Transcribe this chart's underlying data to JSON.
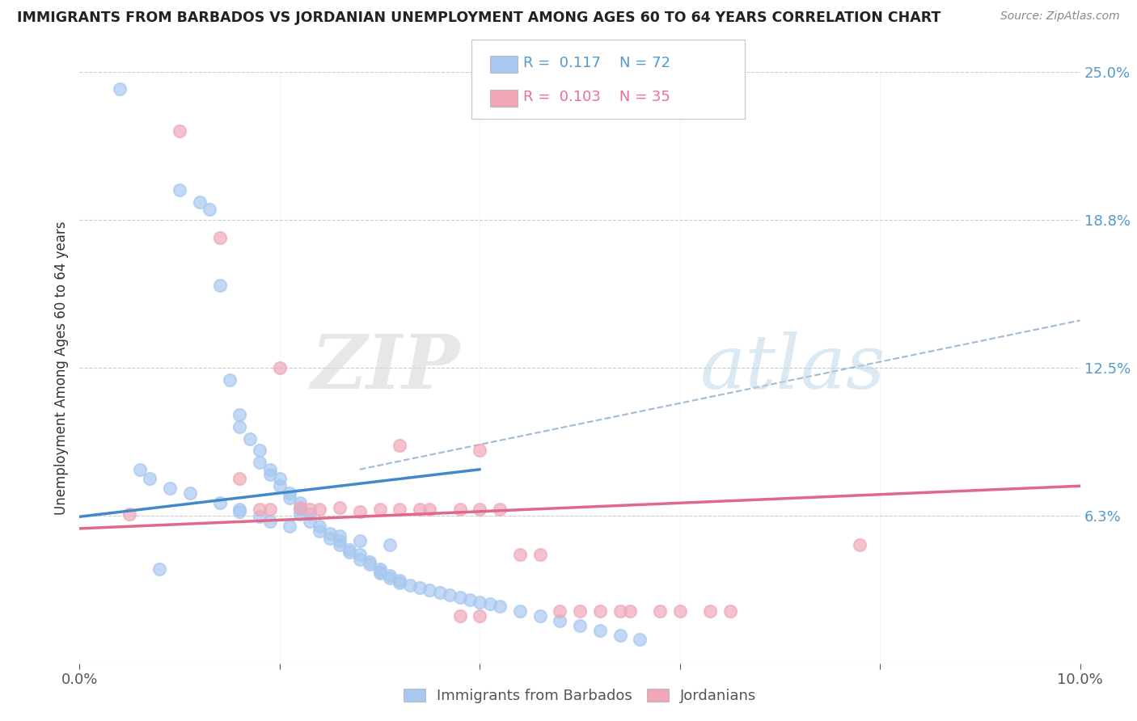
{
  "title": "IMMIGRANTS FROM BARBADOS VS JORDANIAN UNEMPLOYMENT AMONG AGES 60 TO 64 YEARS CORRELATION CHART",
  "source": "Source: ZipAtlas.com",
  "ylabel": "Unemployment Among Ages 60 to 64 years",
  "xlim": [
    0.0,
    0.1
  ],
  "ylim": [
    0.0,
    0.25
  ],
  "yticks_right": [
    0.0625,
    0.125,
    0.1875,
    0.25
  ],
  "yticklabels_right": [
    "6.3%",
    "12.5%",
    "18.8%",
    "25.0%"
  ],
  "watermark_ZIP": "ZIP",
  "watermark_atlas": "atlas",
  "legend_R1": "0.117",
  "legend_N1": "72",
  "legend_R2": "0.103",
  "legend_N2": "35",
  "blue_color": "#a8c8f0",
  "pink_color": "#f0a8b8",
  "trend_blue_color": "#4488cc",
  "trend_pink_color": "#e06888",
  "dash_color": "#88aacc",
  "blue_trend_x": [
    0.0,
    0.04
  ],
  "blue_trend_y": [
    0.062,
    0.082
  ],
  "pink_trend_x": [
    0.0,
    0.1
  ],
  "pink_trend_y": [
    0.057,
    0.075
  ],
  "dash_trend_x": [
    0.028,
    0.1
  ],
  "dash_trend_y": [
    0.082,
    0.145
  ],
  "blue_scatter_x": [
    0.004,
    0.008,
    0.01,
    0.012,
    0.013,
    0.014,
    0.015,
    0.016,
    0.016,
    0.017,
    0.018,
    0.018,
    0.019,
    0.019,
    0.02,
    0.02,
    0.021,
    0.021,
    0.022,
    0.022,
    0.022,
    0.023,
    0.023,
    0.024,
    0.025,
    0.025,
    0.026,
    0.026,
    0.027,
    0.027,
    0.028,
    0.028,
    0.029,
    0.029,
    0.03,
    0.03,
    0.03,
    0.031,
    0.031,
    0.032,
    0.032,
    0.033,
    0.034,
    0.035,
    0.036,
    0.037,
    0.038,
    0.039,
    0.04,
    0.041,
    0.042,
    0.044,
    0.046,
    0.048,
    0.05,
    0.052,
    0.054,
    0.056,
    0.006,
    0.007,
    0.009,
    0.011,
    0.014,
    0.016,
    0.016,
    0.018,
    0.019,
    0.021,
    0.024,
    0.026,
    0.028,
    0.031
  ],
  "blue_scatter_y": [
    0.243,
    0.04,
    0.2,
    0.195,
    0.192,
    0.16,
    0.12,
    0.105,
    0.1,
    0.095,
    0.09,
    0.085,
    0.082,
    0.08,
    0.078,
    0.075,
    0.072,
    0.07,
    0.068,
    0.065,
    0.063,
    0.063,
    0.06,
    0.058,
    0.055,
    0.053,
    0.052,
    0.05,
    0.048,
    0.047,
    0.046,
    0.044,
    0.043,
    0.042,
    0.04,
    0.039,
    0.038,
    0.037,
    0.036,
    0.035,
    0.034,
    0.033,
    0.032,
    0.031,
    0.03,
    0.029,
    0.028,
    0.027,
    0.026,
    0.025,
    0.024,
    0.022,
    0.02,
    0.018,
    0.016,
    0.014,
    0.012,
    0.01,
    0.082,
    0.078,
    0.074,
    0.072,
    0.068,
    0.065,
    0.064,
    0.062,
    0.06,
    0.058,
    0.056,
    0.054,
    0.052,
    0.05
  ],
  "pink_scatter_x": [
    0.005,
    0.01,
    0.014,
    0.016,
    0.018,
    0.019,
    0.02,
    0.022,
    0.023,
    0.024,
    0.026,
    0.028,
    0.03,
    0.032,
    0.032,
    0.034,
    0.035,
    0.038,
    0.04,
    0.04,
    0.042,
    0.044,
    0.046,
    0.05,
    0.054,
    0.038,
    0.04,
    0.078,
    0.055,
    0.058,
    0.06,
    0.063,
    0.065,
    0.052,
    0.048
  ],
  "pink_scatter_y": [
    0.063,
    0.225,
    0.18,
    0.078,
    0.065,
    0.065,
    0.125,
    0.066,
    0.065,
    0.065,
    0.066,
    0.064,
    0.065,
    0.065,
    0.092,
    0.065,
    0.065,
    0.065,
    0.065,
    0.09,
    0.065,
    0.046,
    0.046,
    0.022,
    0.022,
    0.02,
    0.02,
    0.05,
    0.022,
    0.022,
    0.022,
    0.022,
    0.022,
    0.022,
    0.022
  ]
}
